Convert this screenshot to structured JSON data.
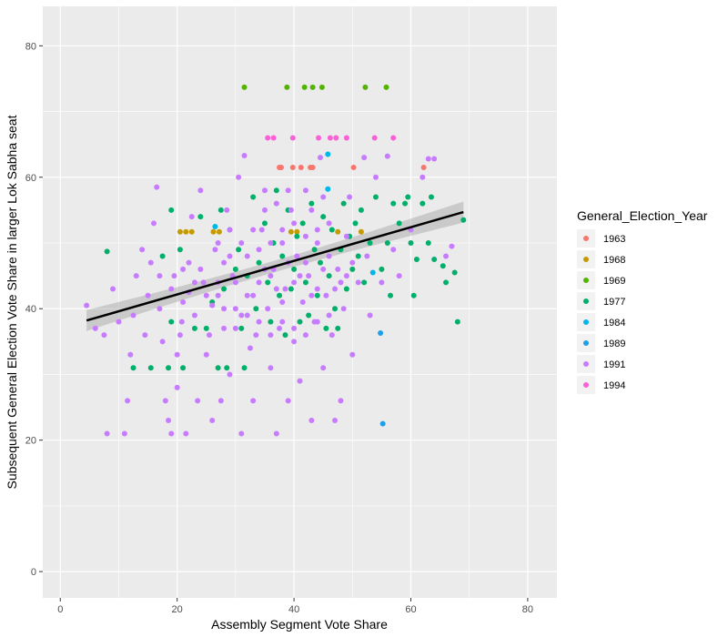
{
  "chart_data": {
    "type": "scatter",
    "title": "",
    "xlabel": "Assembly Segment Vote Share",
    "ylabel": "Subsequent General Election Vote Share in larger Lok Sabha seat",
    "xlim": [
      -3,
      85
    ],
    "ylim": [
      -4,
      86
    ],
    "xticks": [
      0,
      20,
      40,
      60,
      80
    ],
    "yticks": [
      0,
      20,
      40,
      60,
      80
    ],
    "grid": true,
    "legend_title": "General_Election_Year",
    "legend_position": "right",
    "trend_line": {
      "type": "linear",
      "confidence_band": true,
      "x": [
        4.5,
        69
      ],
      "y": [
        38.2,
        54.7
      ],
      "se": 1.6
    },
    "series": [
      {
        "name": "1963",
        "color": "#F8766D",
        "points": [
          [
            37.5,
            61.5
          ],
          [
            37.8,
            61.5
          ],
          [
            39.8,
            61.5
          ],
          [
            41.2,
            61.5
          ],
          [
            42.8,
            61.5
          ],
          [
            43.2,
            61.5
          ],
          [
            50.2,
            61.5
          ],
          [
            62.2,
            61.5
          ]
        ]
      },
      {
        "name": "1968",
        "color": "#C49A00",
        "points": [
          [
            20.5,
            51.7
          ],
          [
            21.5,
            51.7
          ],
          [
            22.5,
            51.7
          ],
          [
            26.2,
            51.7
          ],
          [
            27.2,
            51.7
          ],
          [
            39.5,
            51.7
          ],
          [
            40.5,
            51.7
          ],
          [
            47.5,
            51.7
          ],
          [
            51.5,
            51.7
          ]
        ]
      },
      {
        "name": "1969",
        "color": "#53B400",
        "points": [
          [
            31.5,
            73.7
          ],
          [
            38.8,
            73.7
          ],
          [
            41.8,
            73.7
          ],
          [
            43.2,
            73.7
          ],
          [
            44.8,
            73.7
          ],
          [
            52.2,
            73.7
          ],
          [
            55.8,
            73.7
          ]
        ]
      },
      {
        "name": "1977",
        "color": "#00B06A",
        "points": [
          [
            8,
            48.7
          ],
          [
            12.5,
            31
          ],
          [
            15.5,
            31
          ],
          [
            17.5,
            48
          ],
          [
            18.5,
            31
          ],
          [
            19,
            55
          ],
          [
            19,
            38
          ],
          [
            20.5,
            49
          ],
          [
            21,
            31
          ],
          [
            23,
            37
          ],
          [
            24,
            54
          ],
          [
            25,
            37
          ],
          [
            26,
            41
          ],
          [
            27,
            31
          ],
          [
            27.5,
            55
          ],
          [
            28,
            43
          ],
          [
            28.5,
            31
          ],
          [
            29,
            52
          ],
          [
            30,
            46
          ],
          [
            30.5,
            49
          ],
          [
            31,
            37
          ],
          [
            31.5,
            31
          ],
          [
            32,
            45
          ],
          [
            33,
            57
          ],
          [
            33.5,
            40
          ],
          [
            34,
            47
          ],
          [
            35,
            53
          ],
          [
            35.5,
            44
          ],
          [
            36,
            38
          ],
          [
            36.5,
            50
          ],
          [
            37,
            58
          ],
          [
            37.5,
            42
          ],
          [
            38,
            48
          ],
          [
            38.5,
            36
          ],
          [
            39,
            55
          ],
          [
            39.5,
            43
          ],
          [
            40,
            46
          ],
          [
            40.5,
            51
          ],
          [
            41,
            38
          ],
          [
            41.5,
            53
          ],
          [
            42,
            44
          ],
          [
            42.5,
            39
          ],
          [
            43,
            56
          ],
          [
            43.5,
            49
          ],
          [
            44,
            42
          ],
          [
            44.5,
            47
          ],
          [
            45,
            54
          ],
          [
            45.5,
            37
          ],
          [
            46,
            45
          ],
          [
            46.5,
            52
          ],
          [
            47,
            40
          ],
          [
            47.5,
            37
          ],
          [
            48,
            49
          ],
          [
            48.5,
            56
          ],
          [
            49,
            43
          ],
          [
            49.5,
            51
          ],
          [
            50,
            46
          ],
          [
            50.5,
            53
          ],
          [
            51,
            48
          ],
          [
            51.5,
            55
          ],
          [
            52,
            44
          ],
          [
            53,
            50
          ],
          [
            54,
            57
          ],
          [
            55,
            46
          ],
          [
            56,
            50
          ],
          [
            56.5,
            42
          ],
          [
            57,
            56
          ],
          [
            58,
            53
          ],
          [
            59,
            56
          ],
          [
            59.5,
            57
          ],
          [
            60,
            50
          ],
          [
            60.5,
            42
          ],
          [
            61,
            47.5
          ],
          [
            62,
            56
          ],
          [
            63,
            50
          ],
          [
            63.5,
            57
          ],
          [
            64,
            47.5
          ],
          [
            65.5,
            46.5
          ],
          [
            66,
            44
          ],
          [
            67.5,
            45.5
          ],
          [
            68,
            38
          ],
          [
            69,
            53.5
          ]
        ]
      },
      {
        "name": "1984",
        "color": "#00B6EB",
        "points": [
          [
            26.5,
            52.5
          ],
          [
            45.8,
            63.5
          ],
          [
            45.8,
            58.2
          ],
          [
            53.5,
            45.5
          ]
        ]
      },
      {
        "name": "1989",
        "color": "#1E9FE8",
        "points": [
          [
            54.8,
            36.3
          ],
          [
            55.2,
            22.5
          ]
        ]
      },
      {
        "name": "1991",
        "color": "#C77CFF",
        "points": [
          [
            4.5,
            40.5
          ],
          [
            6,
            37
          ],
          [
            7.5,
            36
          ],
          [
            8,
            21
          ],
          [
            9,
            43
          ],
          [
            10,
            38
          ],
          [
            11,
            21
          ],
          [
            11.5,
            26
          ],
          [
            12,
            33
          ],
          [
            12.5,
            39
          ],
          [
            13,
            45
          ],
          [
            14,
            49
          ],
          [
            14.5,
            36
          ],
          [
            15,
            42
          ],
          [
            15.5,
            47
          ],
          [
            16,
            53
          ],
          [
            16.5,
            58.5
          ],
          [
            17,
            40
          ],
          [
            17.5,
            35
          ],
          [
            18,
            26
          ],
          [
            18.5,
            23
          ],
          [
            19,
            21
          ],
          [
            19.5,
            45
          ],
          [
            20,
            28
          ],
          [
            20,
            33
          ],
          [
            20.5,
            36
          ],
          [
            21,
            41
          ],
          [
            21.5,
            21
          ],
          [
            22,
            47
          ],
          [
            22.5,
            54
          ],
          [
            23,
            39
          ],
          [
            23.5,
            26
          ],
          [
            24,
            58
          ],
          [
            24.5,
            44
          ],
          [
            25,
            33
          ],
          [
            25.5,
            36
          ],
          [
            26,
            23
          ],
          [
            26.5,
            49
          ],
          [
            27,
            42
          ],
          [
            27.5,
            26
          ],
          [
            28,
            37
          ],
          [
            28.5,
            55
          ],
          [
            29,
            30
          ],
          [
            29.5,
            45
          ],
          [
            30,
            40
          ],
          [
            30.5,
            60
          ],
          [
            31,
            21
          ],
          [
            31.5,
            63.3
          ],
          [
            32,
            48
          ],
          [
            32.5,
            34
          ],
          [
            33,
            26
          ],
          [
            33.5,
            36
          ],
          [
            34,
            44
          ],
          [
            34.5,
            52
          ],
          [
            35,
            58
          ],
          [
            35.5,
            40
          ],
          [
            36,
            31
          ],
          [
            36.5,
            46
          ],
          [
            37,
            21
          ],
          [
            37.5,
            37
          ],
          [
            38,
            50
          ],
          [
            38.5,
            43
          ],
          [
            39,
            26
          ],
          [
            39.5,
            55
          ],
          [
            40,
            35
          ],
          [
            40.5,
            48
          ],
          [
            41,
            29
          ],
          [
            41.5,
            41
          ],
          [
            42,
            58
          ],
          [
            42.5,
            45
          ],
          [
            43,
            23
          ],
          [
            43.5,
            38
          ],
          [
            44,
            50
          ],
          [
            44.5,
            63
          ],
          [
            45,
            31
          ],
          [
            45.5,
            42
          ],
          [
            46,
            53
          ],
          [
            46.5,
            36
          ],
          [
            47,
            23
          ],
          [
            47.5,
            46
          ],
          [
            48,
            26
          ],
          [
            48.5,
            40
          ],
          [
            49,
            51
          ],
          [
            49.5,
            57
          ],
          [
            50,
            33
          ],
          [
            51,
            44
          ],
          [
            52,
            63
          ],
          [
            52.5,
            48
          ],
          [
            53,
            39
          ],
          [
            54,
            60
          ],
          [
            55,
            44
          ],
          [
            56,
            63.2
          ],
          [
            57,
            49
          ],
          [
            58,
            45
          ],
          [
            60,
            52
          ],
          [
            62,
            60
          ],
          [
            63,
            62.8
          ],
          [
            64,
            62.8
          ],
          [
            66,
            48
          ],
          [
            67,
            49.5
          ],
          [
            20.8,
            38
          ],
          [
            22,
            42.5
          ],
          [
            24,
            46
          ],
          [
            26,
            40.5
          ],
          [
            28,
            47
          ],
          [
            30,
            44
          ],
          [
            32,
            42
          ],
          [
            34,
            49
          ],
          [
            36,
            45
          ],
          [
            38,
            41
          ],
          [
            40,
            44
          ],
          [
            42,
            47
          ],
          [
            44,
            43
          ],
          [
            46,
            48
          ],
          [
            48,
            44
          ],
          [
            50,
            47
          ],
          [
            31,
            39
          ],
          [
            33,
            42
          ],
          [
            35,
            46
          ],
          [
            37,
            43
          ],
          [
            39,
            47
          ],
          [
            41,
            45
          ],
          [
            43,
            42
          ],
          [
            45,
            46
          ],
          [
            47,
            43
          ],
          [
            49,
            45
          ],
          [
            27,
            44
          ],
          [
            29,
            48
          ],
          [
            36,
            50
          ],
          [
            38,
            52
          ],
          [
            40,
            53
          ],
          [
            42,
            51
          ],
          [
            44,
            52
          ],
          [
            34,
            38
          ],
          [
            36,
            36
          ],
          [
            38,
            38
          ],
          [
            40,
            37
          ],
          [
            42,
            36
          ],
          [
            44,
            38
          ],
          [
            46,
            39
          ],
          [
            25,
            42
          ],
          [
            28,
            40
          ],
          [
            30,
            37
          ],
          [
            32,
            39
          ],
          [
            43,
            55
          ],
          [
            45,
            57
          ],
          [
            39,
            58
          ],
          [
            37,
            56
          ],
          [
            35,
            55
          ],
          [
            33,
            52
          ],
          [
            31,
            50
          ],
          [
            29,
            52
          ],
          [
            27,
            50
          ],
          [
            23,
            44
          ],
          [
            21,
            46
          ],
          [
            19,
            43
          ],
          [
            17,
            45
          ]
        ]
      },
      {
        "name": "1994",
        "color": "#FB61D7",
        "points": [
          [
            35.5,
            66
          ],
          [
            36.5,
            66
          ],
          [
            39.8,
            66
          ],
          [
            44.2,
            66
          ],
          [
            46.2,
            66
          ],
          [
            47.2,
            66
          ],
          [
            49,
            66
          ],
          [
            53.8,
            66
          ],
          [
            57,
            66
          ]
        ]
      }
    ]
  }
}
